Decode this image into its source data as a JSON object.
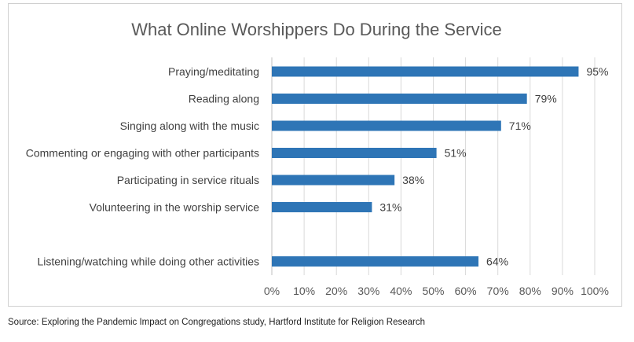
{
  "chart_data": {
    "type": "bar",
    "orientation": "horizontal",
    "title": "What Online Worshippers Do During the Service",
    "categories": [
      "Praying/meditating",
      "Reading along",
      "Singing along with the music",
      "Commenting or engaging with other participants",
      "Participating in service rituals",
      "Volunteering in the worship service",
      "",
      "Listening/watching while doing other activities"
    ],
    "values": [
      95,
      79,
      71,
      51,
      38,
      31,
      null,
      64
    ],
    "data_labels": [
      "95%",
      "79%",
      "71%",
      "51%",
      "38%",
      "31%",
      "",
      "64%"
    ],
    "xlim": [
      0,
      100
    ],
    "xticks": [
      0,
      10,
      20,
      30,
      40,
      50,
      60,
      70,
      80,
      90,
      100
    ],
    "xtick_labels": [
      "0%",
      "10%",
      "20%",
      "30%",
      "40%",
      "50%",
      "60%",
      "70%",
      "80%",
      "90%",
      "100%"
    ],
    "xlabel": "",
    "ylabel": "",
    "grid": "vertical",
    "legend": "none",
    "bar_color": "#2e75b6",
    "grid_color": "#d9d9d9"
  },
  "source": "Source: Exploring the Pandemic Impact on Congregations study, Hartford Institute for Religion Research"
}
